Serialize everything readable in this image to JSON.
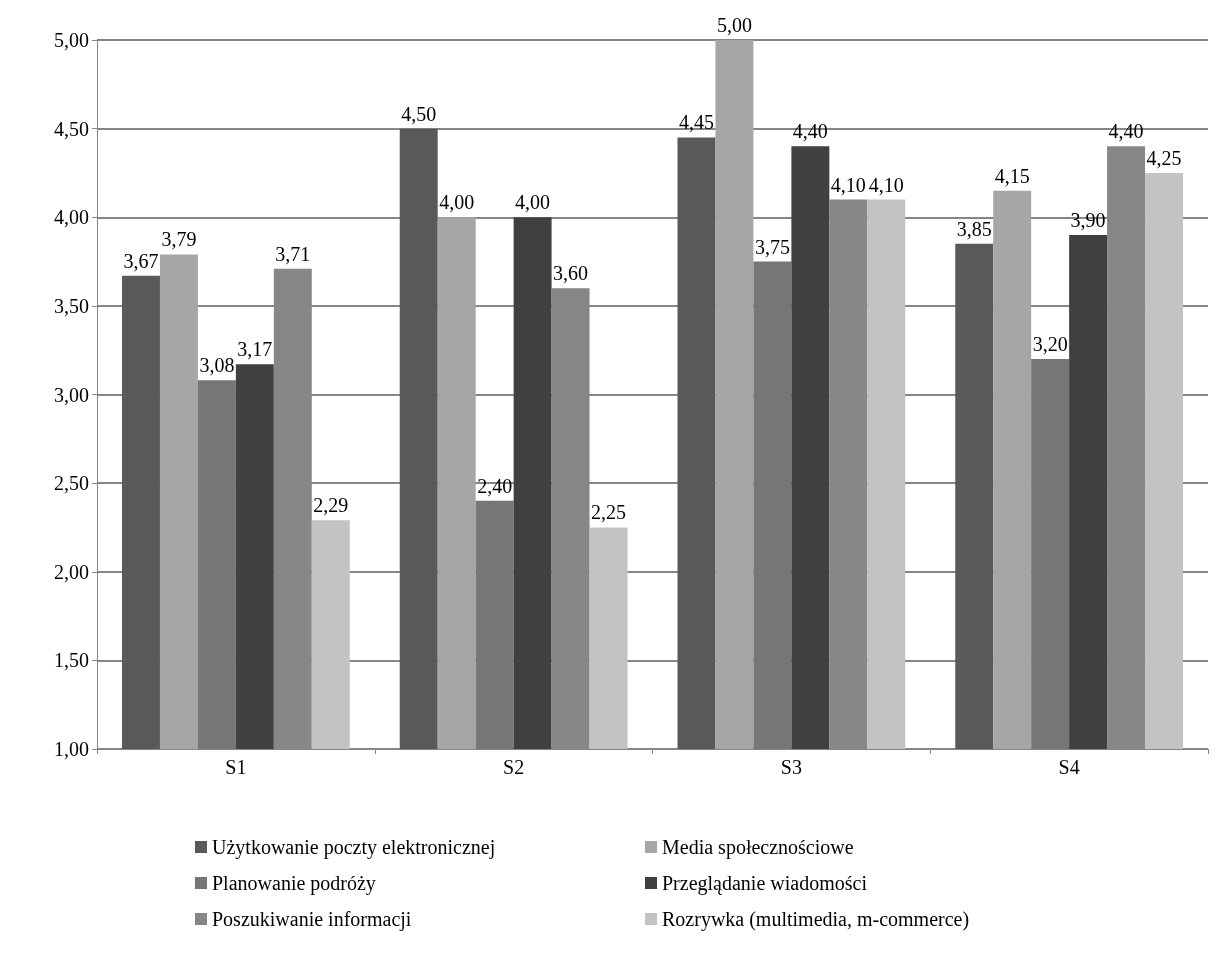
{
  "chart_data": {
    "type": "bar",
    "categories": [
      "S1",
      "S2",
      "S3",
      "S4"
    ],
    "series": [
      {
        "name": "Użytkowanie poczty elektronicznej",
        "color": "#595959",
        "values": [
          3.67,
          4.5,
          4.45,
          3.85
        ],
        "value_labels": [
          "3,67",
          "4,50",
          "4,45",
          "3,85"
        ]
      },
      {
        "name": "Media społecznościowe",
        "color": "#a6a6a6",
        "values": [
          3.79,
          4.0,
          5.0,
          4.15
        ],
        "value_labels": [
          "3,79",
          "4,00",
          "5,00",
          "4,15"
        ]
      },
      {
        "name": "Planowanie podróży",
        "color": "#767676",
        "values": [
          3.08,
          2.4,
          3.75,
          3.2
        ],
        "value_labels": [
          "3,08",
          "2,40",
          "3,75",
          "3,20"
        ]
      },
      {
        "name": "Przeglądanie wiadomości",
        "color": "#404040",
        "values": [
          3.17,
          4.0,
          4.4,
          3.9
        ],
        "value_labels": [
          "3,17",
          "4,00",
          "4,40",
          "3,90"
        ]
      },
      {
        "name": "Poszukiwanie informacji",
        "color": "#878787",
        "values": [
          3.71,
          3.6,
          4.1,
          4.4
        ],
        "value_labels": [
          "3,71",
          "3,60",
          "4,10",
          "4,40"
        ]
      },
      {
        "name": "Rozrywka (multimedia, m-commerce)",
        "color": "#c3c3c3",
        "values": [
          2.29,
          2.25,
          4.1,
          4.25
        ],
        "value_labels": [
          "2,29",
          "2,25",
          "4,10",
          "4,25"
        ]
      }
    ],
    "ylim": [
      1,
      5
    ],
    "yticks": [
      {
        "value": 1,
        "label": "1,00"
      },
      {
        "value": 1.5,
        "label": "1,50"
      },
      {
        "value": 2,
        "label": "2,00"
      },
      {
        "value": 2.5,
        "label": "2,50"
      },
      {
        "value": 3,
        "label": "3,00"
      },
      {
        "value": 3.5,
        "label": "3,50"
      },
      {
        "value": 4,
        "label": "4,00"
      },
      {
        "value": 4.5,
        "label": "4,50"
      },
      {
        "value": 5,
        "label": "5,00"
      }
    ],
    "grid": "y",
    "legend": "bottom"
  }
}
